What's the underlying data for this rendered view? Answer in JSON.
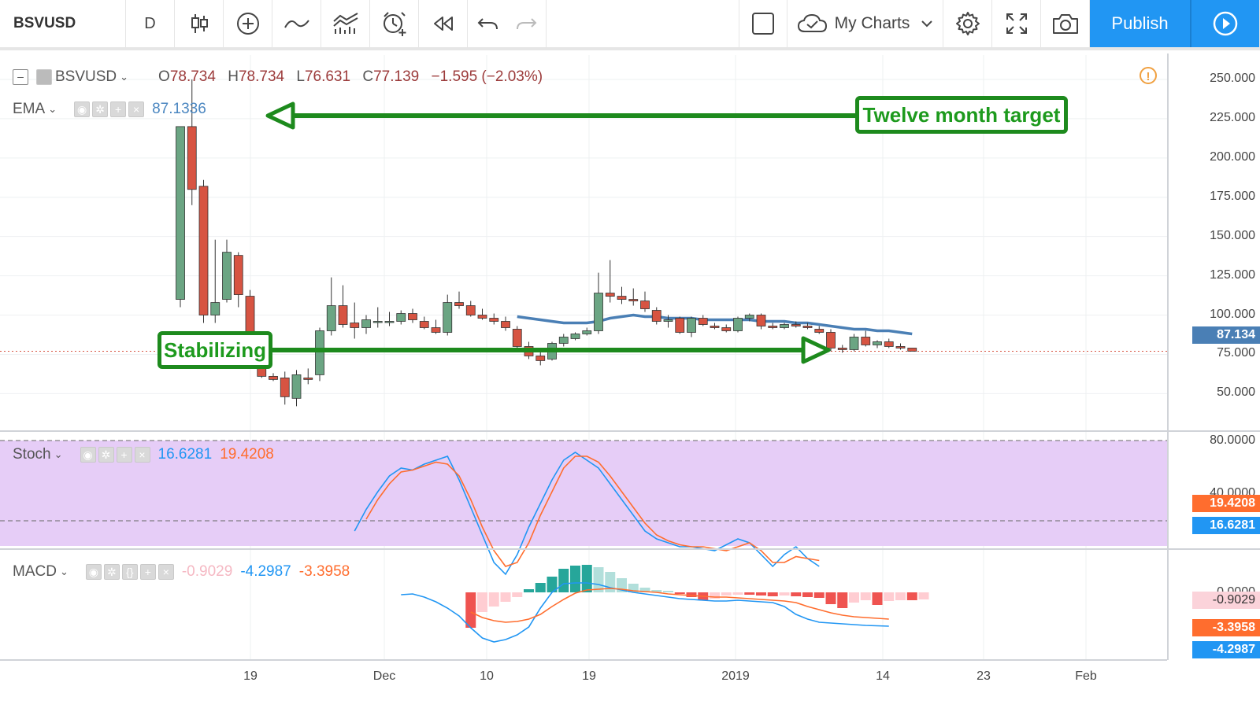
{
  "toolbar": {
    "symbol": "BSVUSD",
    "interval": "D",
    "my_charts": "My Charts",
    "publish": "Publish"
  },
  "main_legend": {
    "symbol": "BSVUSD",
    "o_label": "O",
    "o_value": "78.734",
    "h_label": "H",
    "h_value": "78.734",
    "l_label": "L",
    "l_value": "76.631",
    "c_label": "C",
    "c_value": "77.139",
    "change": "−1.595 (−2.03%)"
  },
  "ema_legend": {
    "name": "EMA",
    "value": "87.1336"
  },
  "stoch_legend": {
    "name": "Stoch",
    "k": "16.6281",
    "d": "19.4208"
  },
  "macd_legend": {
    "name": "MACD",
    "hist": "-0.9029",
    "macd": "-4.2987",
    "signal": "-3.3958"
  },
  "price_axis": {
    "labels": [
      "250.000",
      "225.000",
      "200.000",
      "175.000",
      "150.000",
      "125.000",
      "100.000",
      "75.000",
      "50.000"
    ],
    "ema_tag": "87.134"
  },
  "stoch_axis": {
    "top": "80.0000",
    "mid": "40.0000",
    "k_tag": "16.6281",
    "d_tag": "19.4208"
  },
  "macd_axis": {
    "zero": "0.0000",
    "hist_tag": "-0.9029",
    "signal_tag": "-3.3958",
    "macd_tag": "-4.2987"
  },
  "time_axis": [
    "19",
    "Dec",
    "10",
    "19",
    "2019",
    "14",
    "23",
    "Feb"
  ],
  "annotations": {
    "target": "Twelve month target",
    "stabilizing": "Stabilizing"
  },
  "colors": {
    "up": "#6ba583",
    "down": "#d75442",
    "ema": "#4a7fb5",
    "stoch_k": "#2196f3",
    "stoch_d": "#ff6d2e",
    "stoch_band": "#e6cdf7",
    "annotation": "#1d8a1d",
    "accent": "#2196f3"
  },
  "chart_data": {
    "type": "candlestick",
    "symbol": "BSVUSD",
    "interval": "D",
    "y_range": [
      35,
      265
    ],
    "candles": [
      {
        "o": 110,
        "h": 220,
        "l": 105,
        "c": 220
      },
      {
        "o": 220,
        "h": 250,
        "l": 170,
        "c": 180
      },
      {
        "o": 182,
        "h": 186,
        "l": 95,
        "c": 100
      },
      {
        "o": 100,
        "h": 148,
        "l": 95,
        "c": 108
      },
      {
        "o": 110,
        "h": 148,
        "l": 108,
        "c": 140
      },
      {
        "o": 138,
        "h": 140,
        "l": 105,
        "c": 113
      },
      {
        "o": 112,
        "h": 116,
        "l": 72,
        "c": 81
      },
      {
        "o": 80,
        "h": 83,
        "l": 60,
        "c": 61
      },
      {
        "o": 61,
        "h": 63,
        "l": 58,
        "c": 59
      },
      {
        "o": 60,
        "h": 64,
        "l": 43,
        "c": 48
      },
      {
        "o": 47,
        "h": 65,
        "l": 42,
        "c": 62
      },
      {
        "o": 60,
        "h": 66,
        "l": 56,
        "c": 59
      },
      {
        "o": 62,
        "h": 92,
        "l": 58,
        "c": 90
      },
      {
        "o": 90,
        "h": 124,
        "l": 87,
        "c": 106
      },
      {
        "o": 106,
        "h": 119,
        "l": 92,
        "c": 94
      },
      {
        "o": 95,
        "h": 108,
        "l": 85,
        "c": 92
      },
      {
        "o": 92,
        "h": 100,
        "l": 88,
        "c": 97
      },
      {
        "o": 96,
        "h": 105,
        "l": 92,
        "c": 96
      },
      {
        "o": 96,
        "h": 102,
        "l": 93,
        "c": 96
      },
      {
        "o": 96,
        "h": 103,
        "l": 94,
        "c": 101
      },
      {
        "o": 101,
        "h": 104,
        "l": 95,
        "c": 97
      },
      {
        "o": 96,
        "h": 99,
        "l": 91,
        "c": 92
      },
      {
        "o": 92,
        "h": 97,
        "l": 88,
        "c": 89
      },
      {
        "o": 89,
        "h": 113,
        "l": 87,
        "c": 108
      },
      {
        "o": 108,
        "h": 115,
        "l": 104,
        "c": 106
      },
      {
        "o": 106,
        "h": 109,
        "l": 99,
        "c": 100
      },
      {
        "o": 100,
        "h": 104,
        "l": 97,
        "c": 98
      },
      {
        "o": 98,
        "h": 101,
        "l": 94,
        "c": 96
      },
      {
        "o": 96,
        "h": 99,
        "l": 90,
        "c": 92
      },
      {
        "o": 91,
        "h": 93,
        "l": 78,
        "c": 80
      },
      {
        "o": 80,
        "h": 83,
        "l": 72,
        "c": 74
      },
      {
        "o": 74,
        "h": 77,
        "l": 68,
        "c": 71
      },
      {
        "o": 72,
        "h": 83,
        "l": 71,
        "c": 82
      },
      {
        "o": 82,
        "h": 88,
        "l": 80,
        "c": 86
      },
      {
        "o": 85,
        "h": 89,
        "l": 84,
        "c": 88
      },
      {
        "o": 88,
        "h": 92,
        "l": 87,
        "c": 90
      },
      {
        "o": 90,
        "h": 127,
        "l": 88,
        "c": 114
      },
      {
        "o": 114,
        "h": 135,
        "l": 108,
        "c": 112
      },
      {
        "o": 112,
        "h": 118,
        "l": 107,
        "c": 110
      },
      {
        "o": 110,
        "h": 117,
        "l": 106,
        "c": 109
      },
      {
        "o": 109,
        "h": 115,
        "l": 102,
        "c": 104
      },
      {
        "o": 103,
        "h": 105,
        "l": 94,
        "c": 96
      },
      {
        "o": 96,
        "h": 100,
        "l": 92,
        "c": 97
      },
      {
        "o": 98,
        "h": 99,
        "l": 88,
        "c": 89
      },
      {
        "o": 89,
        "h": 99,
        "l": 86,
        "c": 98
      },
      {
        "o": 98,
        "h": 100,
        "l": 93,
        "c": 94
      },
      {
        "o": 93,
        "h": 95,
        "l": 91,
        "c": 92
      },
      {
        "o": 92,
        "h": 94,
        "l": 89,
        "c": 90
      },
      {
        "o": 90,
        "h": 99,
        "l": 89,
        "c": 98
      },
      {
        "o": 98,
        "h": 101,
        "l": 96,
        "c": 100
      },
      {
        "o": 100,
        "h": 101,
        "l": 91,
        "c": 93
      },
      {
        "o": 93,
        "h": 95,
        "l": 91,
        "c": 92
      },
      {
        "o": 92,
        "h": 95,
        "l": 91,
        "c": 94
      },
      {
        "o": 94,
        "h": 96,
        "l": 92,
        "c": 93
      },
      {
        "o": 93,
        "h": 95,
        "l": 91,
        "c": 92
      },
      {
        "o": 91,
        "h": 93,
        "l": 88,
        "c": 89
      },
      {
        "o": 89,
        "h": 91,
        "l": 77,
        "c": 79
      },
      {
        "o": 79,
        "h": 81,
        "l": 76,
        "c": 78
      },
      {
        "o": 78,
        "h": 88,
        "l": 77,
        "c": 86
      },
      {
        "o": 86,
        "h": 90,
        "l": 80,
        "c": 81
      },
      {
        "o": 81,
        "h": 84,
        "l": 79,
        "c": 83
      },
      {
        "o": 83,
        "h": 85,
        "l": 79,
        "c": 80
      },
      {
        "o": 80,
        "h": 82,
        "l": 78,
        "c": 79
      },
      {
        "o": 79,
        "h": 79,
        "l": 77,
        "c": 77
      }
    ],
    "ema": {
      "start_index": 29,
      "values": [
        99,
        98,
        97,
        96,
        95,
        95,
        95,
        96,
        98,
        99,
        100,
        99,
        99,
        98,
        98,
        98,
        97,
        97,
        97,
        97,
        97,
        96,
        96,
        96,
        95,
        95,
        94,
        93,
        92,
        91,
        91,
        90,
        90,
        89,
        88
      ]
    },
    "stoch": {
      "levels": [
        80,
        40,
        20
      ],
      "k_start_index": 15,
      "k": [
        34,
        45,
        54,
        62,
        66,
        65,
        68,
        70,
        72,
        60,
        46,
        32,
        18,
        12,
        22,
        36,
        48,
        60,
        70,
        74,
        70,
        66,
        58,
        50,
        42,
        34,
        30,
        28,
        26,
        26,
        25,
        24,
        27,
        30,
        28,
        22,
        16,
        22,
        26,
        20,
        16
      ],
      "d_start_index": 16,
      "d": [
        40,
        50,
        58,
        64,
        65,
        67,
        69,
        68,
        62,
        50,
        36,
        24,
        16,
        18,
        28,
        42,
        54,
        66,
        72,
        72,
        69,
        62,
        54,
        46,
        38,
        32,
        29,
        27,
        26,
        26,
        25,
        24,
        26,
        28,
        24,
        18,
        18,
        21,
        20,
        19
      ]
    },
    "macd": {
      "zero": 0,
      "hist_start_index": 25,
      "hist": [
        -4.5,
        -2.5,
        -1.8,
        -1.2,
        -0.6,
        0.4,
        1.2,
        2.0,
        3.0,
        3.4,
        3.5,
        3.2,
        2.6,
        1.8,
        1.1,
        0.6,
        0.3,
        0.2,
        -0.2,
        -0.6,
        -1.0,
        -0.8,
        -0.4,
        -0.3,
        -0.3,
        -0.4,
        -0.5,
        -0.4,
        -0.5,
        -0.6,
        -0.7,
        -1.5,
        -2.0,
        -1.3,
        -1.0,
        -1.6,
        -1.1,
        -1.0,
        -1.0,
        -0.9
      ],
      "macd_start_index": 19,
      "macd": [
        -0.3,
        -0.2,
        -0.6,
        -1.2,
        -2.0,
        -3.0,
        -4.5,
        -5.8,
        -6.3,
        -6.0,
        -5.4,
        -4.4,
        -2.0,
        0.0,
        1.1,
        1.2,
        1.2,
        1.0,
        0.6,
        0.3,
        0.0,
        -0.2,
        -0.4,
        -0.6,
        -0.8,
        -0.9,
        -1.0,
        -1.1,
        -1.1,
        -1.0,
        -1.1,
        -1.2,
        -1.3,
        -1.8,
        -2.8,
        -3.4,
        -3.8,
        -3.9,
        -4.0,
        -4.1,
        -4.2,
        -4.25,
        -4.3
      ],
      "signal_start_index": 25,
      "signal": [
        -2.5,
        -3.2,
        -3.6,
        -3.8,
        -3.7,
        -3.4,
        -2.8,
        -1.8,
        -0.9,
        -0.1,
        0.3,
        0.4,
        0.5,
        0.4,
        0.2,
        0.1,
        0.0,
        -0.2,
        -0.3,
        -0.4,
        -0.5,
        -0.6,
        -0.6,
        -0.7,
        -0.8,
        -0.9,
        -1.0,
        -1.1,
        -1.3,
        -1.8,
        -2.2,
        -2.6,
        -2.9,
        -3.1,
        -3.2,
        -3.3,
        -3.4
      ]
    },
    "x_tick_labels": [
      "19",
      "Dec",
      "10",
      "19",
      "2019",
      "14",
      "23",
      "Feb"
    ]
  }
}
